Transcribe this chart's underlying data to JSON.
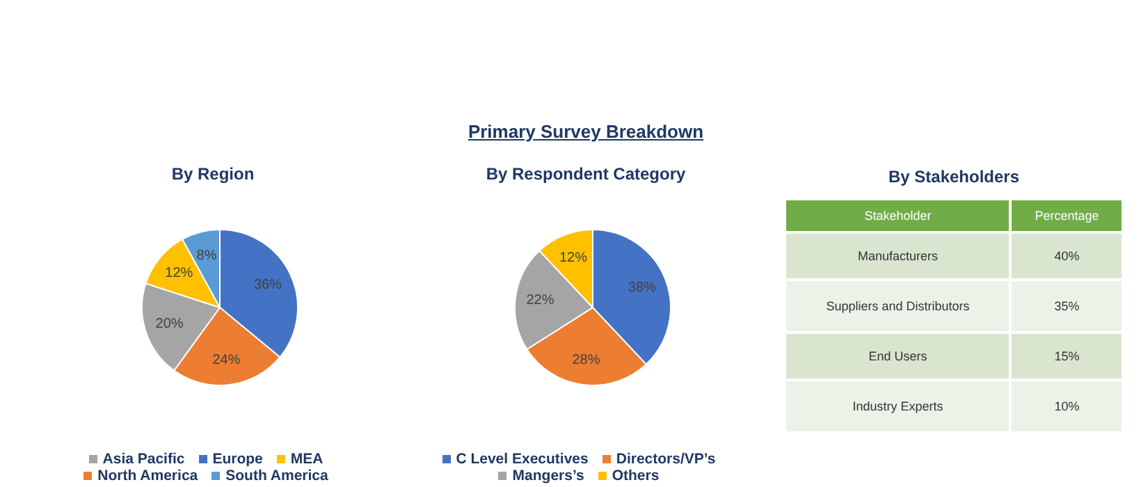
{
  "chart_data": [
    {
      "type": "pie",
      "subtitle": "By Region",
      "categories": [
        "Europe",
        "North America",
        "Asia Pacific",
        "MEA",
        "South America"
      ],
      "values": [
        36,
        24,
        20,
        12,
        8
      ],
      "value_labels": [
        "36%",
        "24%",
        "20%",
        "12%",
        "8%"
      ],
      "colors": [
        "#4472c4",
        "#ed7d31",
        "#a5a5a5",
        "#ffc000",
        "#5b9bd5"
      ],
      "legend": "bottom"
    },
    {
      "type": "pie",
      "title": "Primary Survey Breakdown",
      "subtitle": "By Respondent Category",
      "categories": [
        "C Level Executives",
        "Directors/VP’s",
        "Mangers’s",
        "Others"
      ],
      "values": [
        38,
        28,
        22,
        12
      ],
      "value_labels": [
        "38%",
        "28%",
        "22%",
        "12%"
      ],
      "colors": [
        "#4472c4",
        "#ed7d31",
        "#a5a5a5",
        "#ffc000"
      ],
      "legend": "bottom"
    },
    {
      "type": "other",
      "subtitle": "By Stakeholders",
      "xlabel": "Stakeholder",
      "ylabel": "Percentage",
      "categories": [
        "Manufacturers",
        "Suppliers and Distributors",
        "End Users",
        "Industry Experts"
      ],
      "values": [
        40,
        35,
        15,
        10
      ],
      "value_labels": [
        "40%",
        "35%",
        "15%",
        "10%"
      ]
    }
  ]
}
